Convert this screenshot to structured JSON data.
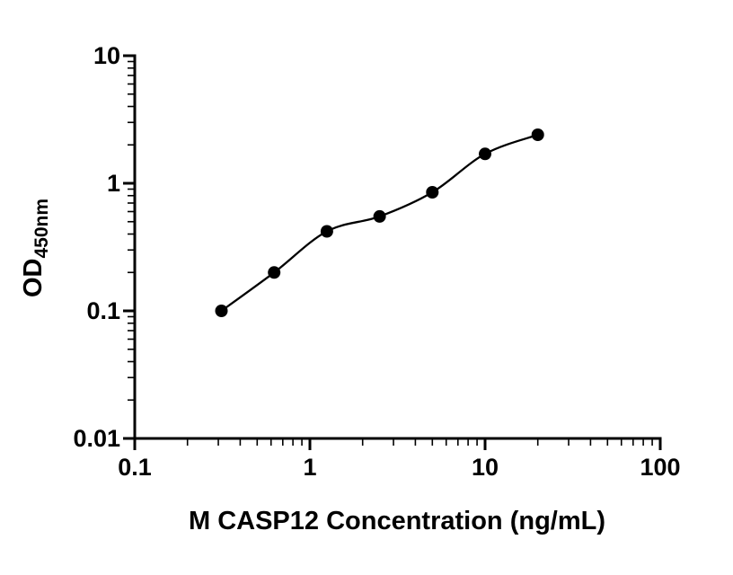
{
  "figure": {
    "background": "#ffffff",
    "ink_color": "#000000"
  },
  "chart_data": {
    "type": "scatter",
    "line_through_points": true,
    "x": [
      0.3125,
      0.625,
      1.25,
      2.5,
      5,
      10,
      20
    ],
    "y": [
      0.1,
      0.2,
      0.42,
      0.55,
      0.85,
      1.7,
      2.4
    ],
    "title": "",
    "xlabel": "M CASP12 Concentration (ng/mL)",
    "ylabel": "OD450nm",
    "ylabel_base": "OD",
    "ylabel_sub": "450nm",
    "xscale": "log",
    "yscale": "log",
    "xlim": [
      0.1,
      100
    ],
    "ylim": [
      0.01,
      10
    ],
    "x_ticks": [
      "0.1",
      "1",
      "10",
      "100"
    ],
    "y_ticks": [
      "10",
      "1",
      "0.1",
      "0.01"
    ],
    "minor_ticks": true,
    "grid": false,
    "legend": "none",
    "marker_color": "#000000",
    "line_color": "#000000"
  }
}
